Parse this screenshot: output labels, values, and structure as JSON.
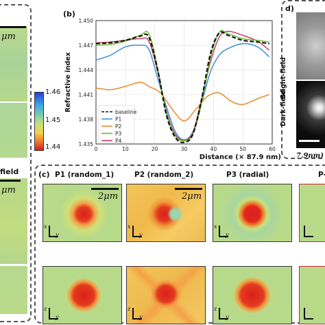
{
  "left_panel": {
    "scalebar_text": "μm",
    "field_label_fragment": "field",
    "scalebar_text_2": "μm"
  },
  "colorbar": {
    "ticks": [
      "1.46",
      "1.45",
      "1.44"
    ]
  },
  "panel_b": {
    "label": "(b)",
    "ylabel": "Refractive index",
    "xlabel": "Distance (× 87.9 nm)",
    "y_ticks": [
      "1.450",
      "1.447",
      "1.444",
      "1.441",
      "1.438",
      "1.435"
    ],
    "x_ticks": [
      "0",
      "10",
      "20",
      "30",
      "40",
      "50",
      "60"
    ]
  },
  "chart_data": {
    "type": "line",
    "xlabel": "Distance (× 87.9 nm)",
    "ylabel": "Refractive index",
    "xlim": [
      0,
      60
    ],
    "ylim": [
      1.435,
      1.45
    ],
    "legend_position": "bottom-left",
    "series": [
      {
        "name": "baseline",
        "color": "#111111",
        "dash": true,
        "x": [
          0,
          5,
          10,
          15,
          18,
          21,
          24,
          27,
          30,
          33,
          36,
          39,
          42,
          45,
          50,
          55,
          59
        ],
        "y": [
          1.4472,
          1.4473,
          1.4476,
          1.4481,
          1.448,
          1.444,
          1.4385,
          1.4358,
          1.4352,
          1.4362,
          1.4405,
          1.446,
          1.4485,
          1.4482,
          1.4476,
          1.4474,
          1.4472
        ]
      },
      {
        "name": "P1",
        "color": "#3c8fd8",
        "x": [
          0,
          5,
          10,
          15,
          18,
          21,
          24,
          27,
          30,
          33,
          36,
          39,
          42,
          45,
          50,
          55,
          59
        ],
        "y": [
          1.4452,
          1.4458,
          1.4468,
          1.447,
          1.4465,
          1.443,
          1.4395,
          1.4365,
          1.4355,
          1.4365,
          1.44,
          1.4438,
          1.4458,
          1.4466,
          1.4472,
          1.4468,
          1.4456
        ]
      },
      {
        "name": "P2",
        "color": "#e8892b",
        "x": [
          0,
          5,
          10,
          15,
          18,
          22,
          26,
          30,
          34,
          38,
          42,
          46,
          50,
          55,
          59
        ],
        "y": [
          1.4418,
          1.4416,
          1.442,
          1.4425,
          1.442,
          1.4412,
          1.4392,
          1.4378,
          1.4392,
          1.4408,
          1.4412,
          1.4402,
          1.4398,
          1.4405,
          1.441
        ]
      },
      {
        "name": "P3",
        "color": "#62c22b",
        "x": [
          0,
          5,
          10,
          15,
          18,
          21,
          24,
          27,
          30,
          33,
          36,
          39,
          42,
          45,
          50,
          55,
          59
        ],
        "y": [
          1.447,
          1.4471,
          1.4475,
          1.4482,
          1.4484,
          1.4442,
          1.4388,
          1.436,
          1.4354,
          1.4362,
          1.44,
          1.4455,
          1.4486,
          1.4484,
          1.4478,
          1.4476,
          1.4474
        ]
      },
      {
        "name": "P4",
        "color": "#c93c6a",
        "x": [
          0,
          5,
          10,
          15,
          18,
          21,
          24,
          27,
          30,
          33,
          36,
          39,
          42,
          45,
          50,
          55,
          59
        ],
        "y": [
          1.4473,
          1.4474,
          1.4476,
          1.4478,
          1.4475,
          1.4438,
          1.439,
          1.4362,
          1.4355,
          1.4364,
          1.4405,
          1.445,
          1.448,
          1.4487,
          1.4482,
          1.4475,
          1.4464
        ]
      }
    ]
  },
  "panel_d": {
    "label": "d)",
    "row1": "Bright-field",
    "row2": "Dark-field",
    "scale_text": "7.9nm)"
  },
  "panel_c": {
    "label": "(c)",
    "headers": [
      "P1 (random_1)",
      "P2 (random_2)",
      "P3 (radial)",
      "P-"
    ],
    "scalebar_text": "2μm",
    "axes_top": {
      "vertical": "x",
      "horizontal": "y"
    },
    "axes_bottom": {
      "vertical": "z",
      "horizontal": "y"
    }
  },
  "colors": {
    "background_field": "#b7d98a",
    "warm_field": "#f2c766",
    "hot_spot": "#e0231f",
    "baseline": "#111111",
    "P1": "#3c8fd8",
    "P2": "#e8892b",
    "P3": "#62c22b",
    "P4": "#c93c6a"
  }
}
